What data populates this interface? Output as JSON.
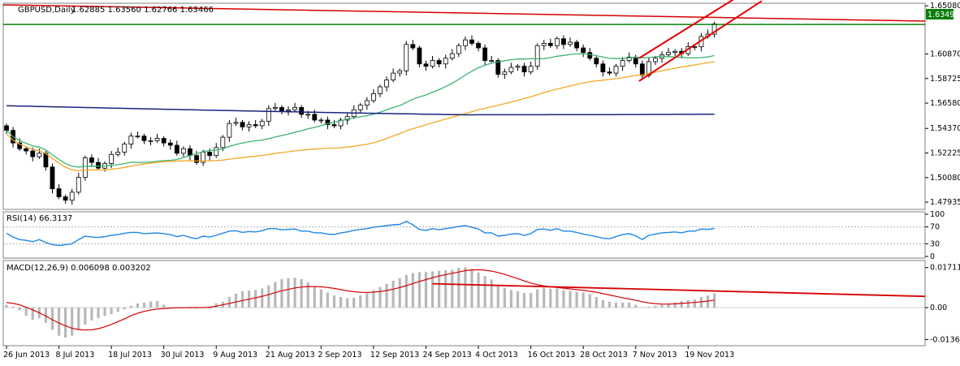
{
  "chart_data": [
    {
      "type": "candlestick",
      "title": "GBPUSD,Daily",
      "ohlc_label": "1.62885 1.63560 1.62766 1.63466",
      "price_label": "1.63495",
      "yticks": [
        "1.65080",
        "1.63495",
        "1.60870",
        "1.58725",
        "1.56580",
        "1.54370",
        "1.52225",
        "1.50080",
        "1.47935"
      ],
      "ylim": [
        1.473,
        1.653
      ],
      "xticks": [
        "26 Jun 2013",
        "8 Jul 2013",
        "18 Jul 2013",
        "30 Jul 2013",
        "9 Aug 2013",
        "21 Aug 2013",
        "2 Sep 2013",
        "12 Sep 2013",
        "24 Sep 2013",
        "4 Oct 2013",
        "16 Oct 2013",
        "28 Oct 2013",
        "7 Nov 2013",
        "19 Nov 2013"
      ],
      "close": [
        1.542,
        1.531,
        1.526,
        1.524,
        1.519,
        1.522,
        1.51,
        1.491,
        1.484,
        1.481,
        1.488,
        1.501,
        1.518,
        1.514,
        1.509,
        1.513,
        1.521,
        1.523,
        1.53,
        1.537,
        1.537,
        1.533,
        1.533,
        1.535,
        1.531,
        1.529,
        1.522,
        1.526,
        1.52,
        1.514,
        1.523,
        1.52,
        1.527,
        1.536,
        1.548,
        1.549,
        1.545,
        1.547,
        1.546,
        1.55,
        1.561,
        1.562,
        1.559,
        1.56,
        1.562,
        1.556,
        1.556,
        1.551,
        1.551,
        1.547,
        1.546,
        1.551,
        1.554,
        1.56,
        1.564,
        1.568,
        1.574,
        1.58,
        1.586,
        1.592,
        1.594,
        1.617,
        1.614,
        1.6,
        1.598,
        1.603,
        1.6,
        1.605,
        1.609,
        1.616,
        1.621,
        1.618,
        1.614,
        1.603,
        1.603,
        1.591,
        1.593,
        1.597,
        1.598,
        1.593,
        1.598,
        1.616,
        1.618,
        1.616,
        1.622,
        1.617,
        1.619,
        1.614,
        1.61,
        1.605,
        1.6,
        1.593,
        1.592,
        1.598,
        1.603,
        1.606,
        1.6,
        1.59,
        1.602,
        1.605,
        1.608,
        1.61,
        1.611,
        1.609,
        1.615,
        1.615,
        1.624,
        1.626,
        1.635
      ],
      "indicators": [
        "EMA fast (green)",
        "EMA mid (orange)",
        "EMA slow (navy)"
      ],
      "colors": {
        "price_line": "#d50000",
        "support_line": "#0a7d0a",
        "ema_fast": "#3cb371",
        "ema_mid": "#f5a623",
        "ema_slow": "#1a237e",
        "channel": "#e00000"
      }
    },
    {
      "type": "line",
      "title": "RSI(14) 66.3137",
      "yticks": [
        "100",
        "70",
        "30",
        "0"
      ],
      "ylim": [
        0,
        100
      ],
      "values": [
        55,
        46,
        40,
        38,
        35,
        40,
        33,
        28,
        26,
        28,
        30,
        40,
        48,
        46,
        45,
        47,
        50,
        52,
        55,
        57,
        57,
        54,
        55,
        56,
        54,
        52,
        47,
        50,
        45,
        42,
        48,
        46,
        50,
        55,
        60,
        61,
        57,
        59,
        58,
        61,
        66,
        66,
        63,
        64,
        65,
        60,
        60,
        56,
        56,
        53,
        52,
        56,
        58,
        62,
        64,
        66,
        69,
        71,
        73,
        75,
        76,
        83,
        75,
        64,
        62,
        66,
        63,
        66,
        68,
        71,
        73,
        69,
        65,
        56,
        56,
        48,
        50,
        53,
        54,
        50,
        54,
        64,
        65,
        62,
        66,
        60,
        60,
        57,
        53,
        50,
        47,
        43,
        42,
        47,
        52,
        54,
        49,
        40,
        50,
        53,
        56,
        57,
        58,
        56,
        60,
        60,
        65,
        64,
        66.3
      ]
    },
    {
      "type": "bar+line",
      "title": "MACD(12,26,9) 0.006098 0.003202",
      "yticks": [
        "0.017112",
        "0.00",
        "-0.013646"
      ],
      "ylim": [
        -0.0156,
        0.0191
      ],
      "histogram": [
        0.0012,
        0.0004,
        -0.0012,
        -0.0035,
        -0.0052,
        -0.0045,
        -0.0065,
        -0.0095,
        -0.012,
        -0.0128,
        -0.012,
        -0.0095,
        -0.0072,
        -0.0055,
        -0.0045,
        -0.0036,
        -0.0028,
        -0.0018,
        -0.0008,
        0.0008,
        0.0018,
        0.0022,
        0.0026,
        0.0028,
        0.0012,
        0.0002,
        -0.0002,
        -0.0001,
        -0.0003,
        -0.0004,
        0.0002,
        -0.0004,
        0.0018,
        0.0025,
        0.0045,
        0.006,
        0.007,
        0.0073,
        0.0075,
        0.0082,
        0.0095,
        0.011,
        0.0121,
        0.0126,
        0.0128,
        0.0122,
        0.0108,
        0.0092,
        0.0078,
        0.0065,
        0.0052,
        0.0045,
        0.004,
        0.0042,
        0.0052,
        0.0062,
        0.0075,
        0.0088,
        0.0102,
        0.0115,
        0.0126,
        0.014,
        0.0148,
        0.0152,
        0.0152,
        0.0155,
        0.0158,
        0.016,
        0.0162,
        0.017,
        0.0172,
        0.0165,
        0.015,
        0.0135,
        0.012,
        0.0098,
        0.0085,
        0.0075,
        0.007,
        0.0062,
        0.0062,
        0.0078,
        0.0085,
        0.008,
        0.0082,
        0.0075,
        0.0072,
        0.0068,
        0.0065,
        0.0058,
        0.0045,
        0.0032,
        0.0025,
        0.0022,
        0.0022,
        0.0022,
        0.0012,
        0.0002,
        0.0004,
        0.0008,
        0.0012,
        0.0018,
        0.0022,
        0.0028,
        0.0032,
        0.0035,
        0.0045,
        0.0052,
        0.0061
      ],
      "signal": [
        0.0022,
        0.0018,
        0.0012,
        0.0002,
        -0.001,
        -0.0022,
        -0.0036,
        -0.0052,
        -0.0066,
        -0.0078,
        -0.0088,
        -0.0094,
        -0.0096,
        -0.0095,
        -0.009,
        -0.0082,
        -0.0072,
        -0.006,
        -0.0048,
        -0.0035,
        -0.0024,
        -0.0016,
        -0.001,
        -0.0006,
        -0.0004,
        -0.0002,
        -0.0001,
        -0.0001,
        0.0,
        0.0,
        0.0,
        0.0002,
        0.0006,
        0.0012,
        0.0018,
        0.0024,
        0.003,
        0.0036,
        0.0042,
        0.0048,
        0.0056,
        0.0064,
        0.0072,
        0.0078,
        0.0084,
        0.0088,
        0.009,
        0.009,
        0.0089,
        0.0086,
        0.0082,
        0.0077,
        0.0072,
        0.0068,
        0.0065,
        0.0065,
        0.0066,
        0.0069,
        0.0073,
        0.0079,
        0.0086,
        0.0094,
        0.0103,
        0.0112,
        0.012,
        0.0128,
        0.0135,
        0.0141,
        0.0147,
        0.0152,
        0.0158,
        0.0161,
        0.0162,
        0.016,
        0.0156,
        0.015,
        0.0142,
        0.0133,
        0.0124,
        0.0114,
        0.0105,
        0.0098,
        0.0093,
        0.0089,
        0.0086,
        0.0083,
        0.008,
        0.0077,
        0.0074,
        0.007,
        0.0066,
        0.006,
        0.0054,
        0.0048,
        0.0042,
        0.0037,
        0.0031,
        0.0025,
        0.002,
        0.0017,
        0.0015,
        0.0015,
        0.0016,
        0.0018,
        0.002,
        0.0022,
        0.0025,
        0.0028,
        0.0032
      ]
    }
  ]
}
